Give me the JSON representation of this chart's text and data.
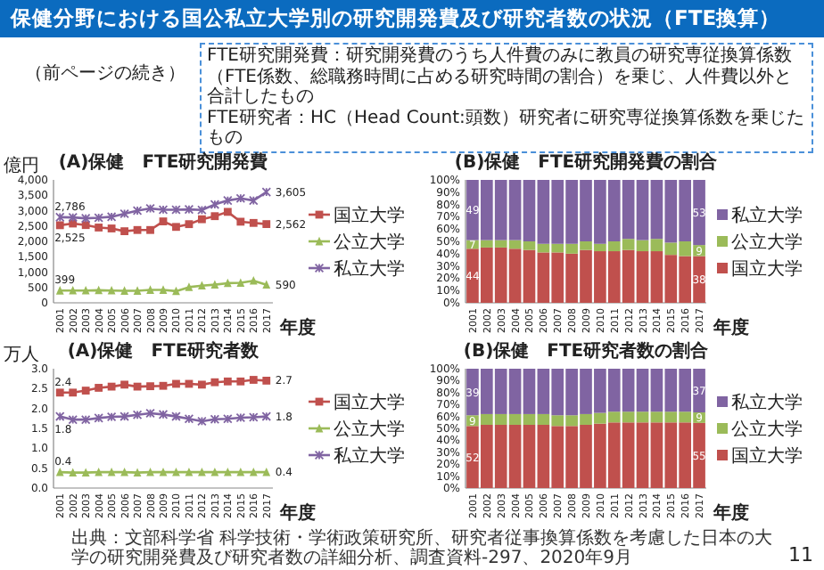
{
  "chart_data": [
    {
      "type": "other",
      "title": "保健分野における国公私立大学別の研究開発費及び研究者数の状況（FTE換算）",
      "subtitle": "（前ページの続き）",
      "annotations": [
        "FTE研究開発費：研究開発費のうち人件費のみに教員の研究専従換算係数（FTE係数、総職務時間に占める研究時間の割合）を乗じ、人件費以外と合計したもの",
        "FTE研究者：HC（Head Count:頭数）研究者に研究専従換算係数を乗じたもの",
        "出典：文部科学省 科学技術・学術政策研究所、研究者従事換算係数を考慮した日本の大学の研究開発費及び研究者数の詳細分析、調査資料-297、2020年9月",
        "11"
      ]
    },
    {
      "type": "line",
      "title": "(A)保健　FTE研究開発費",
      "xlabel": "年度",
      "ylabel": "億円",
      "legend": "right",
      "categories": [
        "2001",
        "2002",
        "2003",
        "2004",
        "2005",
        "2006",
        "2007",
        "2008",
        "2009",
        "2010",
        "2011",
        "2012",
        "2013",
        "2014",
        "2015",
        "2016",
        "2017"
      ],
      "ylim": [
        0,
        4000
      ],
      "yticks": [
        0,
        500,
        {
          "value": 1000,
          "label": "1,000"
        },
        {
          "value": 1500,
          "label": "1,500"
        },
        {
          "value": 2000,
          "label": "2,000"
        },
        {
          "value": 2500,
          "label": "2,500"
        },
        {
          "value": 3000,
          "label": "3,000"
        },
        {
          "value": 3500,
          "label": "3,500"
        },
        {
          "value": 4000,
          "label": "4,000"
        }
      ],
      "series": [
        {
          "name": "国立大学",
          "color": "#c0504d",
          "marker": "square",
          "values": [
            2525,
            2580,
            2530,
            2450,
            2420,
            2330,
            2370,
            2370,
            2650,
            2470,
            2560,
            2720,
            2820,
            2960,
            2640,
            2600,
            2562
          ],
          "value_labels": [
            "2,525",
            null,
            null,
            null,
            null,
            null,
            null,
            null,
            null,
            null,
            null,
            null,
            null,
            null,
            null,
            null,
            "2,562"
          ]
        },
        {
          "name": "公立大学",
          "color": "#9bbb59",
          "marker": "triangle",
          "values": [
            399,
            400,
            400,
            410,
            400,
            390,
            390,
            420,
            420,
            380,
            510,
            560,
            590,
            640,
            650,
            720,
            590
          ],
          "value_labels": [
            "399",
            null,
            null,
            null,
            null,
            null,
            null,
            null,
            null,
            null,
            null,
            null,
            null,
            null,
            null,
            null,
            "590"
          ]
        },
        {
          "name": "私立大学",
          "color": "#8064a2",
          "marker": "cross",
          "values": [
            2786,
            2780,
            2750,
            2770,
            2800,
            2900,
            3000,
            3070,
            3030,
            3030,
            3040,
            3020,
            3200,
            3330,
            3400,
            3330,
            3605
          ],
          "value_labels": [
            "2,786",
            null,
            null,
            null,
            null,
            null,
            null,
            null,
            null,
            null,
            null,
            null,
            null,
            null,
            null,
            null,
            "3,605"
          ]
        }
      ]
    },
    {
      "type": "bar",
      "stacked": true,
      "title": "(B)保健　FTE研究開発費の割合",
      "xlabel": "年度",
      "legend": "right",
      "categories": [
        "2001",
        "2002",
        "2003",
        "2004",
        "2005",
        "2006",
        "2007",
        "2008",
        "2009",
        "2010",
        "2011",
        "2012",
        "2013",
        "2014",
        "2015",
        "2016",
        "2017"
      ],
      "ylim": [
        0,
        100
      ],
      "yticks": [
        {
          "value": 0,
          "label": "0%"
        },
        {
          "value": 10,
          "label": "10%"
        },
        {
          "value": 20,
          "label": "20%"
        },
        {
          "value": 30,
          "label": "30%"
        },
        {
          "value": 40,
          "label": "40%"
        },
        {
          "value": 50,
          "label": "50%"
        },
        {
          "value": 60,
          "label": "60%"
        },
        {
          "value": 70,
          "label": "70%"
        },
        {
          "value": 80,
          "label": "80%"
        },
        {
          "value": 90,
          "label": "90%"
        },
        {
          "value": 100,
          "label": "100%"
        }
      ],
      "series": [
        {
          "name": "国立大学",
          "color": "#c0504d",
          "values": [
            44,
            45,
            45,
            44,
            43,
            41,
            41,
            40,
            43,
            42,
            42,
            43,
            42,
            42,
            39,
            38,
            38
          ],
          "value_labels": [
            "44",
            null,
            null,
            null,
            null,
            null,
            null,
            null,
            null,
            null,
            null,
            null,
            null,
            null,
            null,
            null,
            "38"
          ]
        },
        {
          "name": "公立大学",
          "color": "#9bbb59",
          "values": [
            7,
            6,
            6,
            7,
            7,
            7,
            7,
            8,
            7,
            6,
            8,
            9,
            9,
            10,
            10,
            12,
            9
          ],
          "value_labels": [
            "7",
            null,
            null,
            null,
            null,
            null,
            null,
            null,
            null,
            null,
            null,
            null,
            null,
            null,
            null,
            null,
            "9"
          ]
        },
        {
          "name": "私立大学",
          "color": "#8064a2",
          "values": [
            49,
            49,
            49,
            49,
            50,
            52,
            52,
            52,
            50,
            52,
            50,
            48,
            49,
            48,
            51,
            50,
            53
          ],
          "value_labels": [
            "49",
            null,
            null,
            null,
            null,
            null,
            null,
            null,
            null,
            null,
            null,
            null,
            null,
            null,
            null,
            null,
            "53"
          ]
        }
      ]
    },
    {
      "type": "line",
      "title": "(A)保健　FTE研究者数",
      "xlabel": "年度",
      "ylabel": "万人",
      "legend": "right",
      "categories": [
        "2001",
        "2002",
        "2003",
        "2004",
        "2005",
        "2006",
        "2007",
        "2008",
        "2009",
        "2010",
        "2011",
        "2012",
        "2013",
        "2014",
        "2015",
        "2016",
        "2017"
      ],
      "ylim": [
        0,
        3
      ],
      "yticks": [
        {
          "value": 0,
          "label": "0.0"
        },
        0.5,
        {
          "value": 1,
          "label": "1.0"
        },
        1.5,
        {
          "value": 2,
          "label": "2.0"
        },
        2.5,
        {
          "value": 3,
          "label": "3.0"
        }
      ],
      "series": [
        {
          "name": "国立大学",
          "color": "#c0504d",
          "marker": "square",
          "values": [
            2.4,
            2.4,
            2.45,
            2.52,
            2.55,
            2.6,
            2.55,
            2.56,
            2.57,
            2.62,
            2.62,
            2.6,
            2.66,
            2.68,
            2.68,
            2.72,
            2.7
          ],
          "value_labels": [
            "2.4",
            null,
            null,
            null,
            null,
            null,
            null,
            null,
            null,
            null,
            null,
            null,
            null,
            null,
            null,
            null,
            "2.7"
          ]
        },
        {
          "name": "公立大学",
          "color": "#9bbb59",
          "marker": "triangle",
          "values": [
            0.4,
            0.39,
            0.39,
            0.4,
            0.4,
            0.4,
            0.39,
            0.4,
            0.4,
            0.4,
            0.4,
            0.4,
            0.4,
            0.4,
            0.4,
            0.4,
            0.4
          ],
          "value_labels": [
            "0.4",
            null,
            null,
            null,
            null,
            null,
            null,
            null,
            null,
            null,
            null,
            null,
            null,
            null,
            null,
            null,
            "0.4"
          ]
        },
        {
          "name": "私立大学",
          "color": "#8064a2",
          "marker": "cross",
          "values": [
            1.8,
            1.72,
            1.72,
            1.76,
            1.79,
            1.8,
            1.84,
            1.88,
            1.85,
            1.8,
            1.74,
            1.68,
            1.73,
            1.74,
            1.77,
            1.78,
            1.8
          ],
          "value_labels": [
            "1.8",
            null,
            null,
            null,
            null,
            null,
            null,
            null,
            null,
            null,
            null,
            null,
            null,
            null,
            null,
            null,
            "1.8"
          ]
        }
      ]
    },
    {
      "type": "bar",
      "stacked": true,
      "title": "(B)保健　FTE研究者数の割合",
      "xlabel": "年度",
      "legend": "right",
      "categories": [
        "2001",
        "2002",
        "2003",
        "2004",
        "2005",
        "2006",
        "2007",
        "2008",
        "2009",
        "2010",
        "2011",
        "2012",
        "2013",
        "2014",
        "2015",
        "2016",
        "2017"
      ],
      "ylim": [
        0,
        100
      ],
      "yticks": [
        {
          "value": 0,
          "label": "0%"
        },
        {
          "value": 10,
          "label": "10%"
        },
        {
          "value": 20,
          "label": "20%"
        },
        {
          "value": 30,
          "label": "30%"
        },
        {
          "value": 40,
          "label": "40%"
        },
        {
          "value": 50,
          "label": "50%"
        },
        {
          "value": 60,
          "label": "60%"
        },
        {
          "value": 70,
          "label": "70%"
        },
        {
          "value": 80,
          "label": "80%"
        },
        {
          "value": 90,
          "label": "90%"
        },
        {
          "value": 100,
          "label": "100%"
        }
      ],
      "series": [
        {
          "name": "国立大学",
          "color": "#c0504d",
          "values": [
            52,
            53,
            53,
            53,
            53,
            53,
            52,
            52,
            53,
            54,
            55,
            55,
            55,
            55,
            55,
            55,
            54.6
          ],
          "value_labels": [
            "52",
            null,
            null,
            null,
            null,
            null,
            null,
            null,
            null,
            null,
            null,
            null,
            null,
            null,
            null,
            null,
            "55"
          ]
        },
        {
          "name": "公立大学",
          "color": "#9bbb59",
          "values": [
            9,
            9,
            9,
            9,
            9,
            9,
            9,
            9,
            9,
            9,
            9,
            9,
            9,
            9,
            9,
            9,
            8.8
          ],
          "value_labels": [
            "9",
            null,
            null,
            null,
            null,
            null,
            null,
            null,
            null,
            null,
            null,
            null,
            null,
            null,
            null,
            null,
            "9"
          ]
        },
        {
          "name": "私立大学",
          "color": "#8064a2",
          "values": [
            39,
            38,
            38,
            38,
            38,
            38,
            39,
            39,
            38,
            37,
            36,
            36,
            36,
            36,
            36,
            36,
            36.6
          ],
          "value_labels": [
            "39",
            null,
            null,
            null,
            null,
            null,
            null,
            null,
            null,
            null,
            null,
            null,
            null,
            null,
            null,
            null,
            "37"
          ]
        }
      ]
    }
  ]
}
